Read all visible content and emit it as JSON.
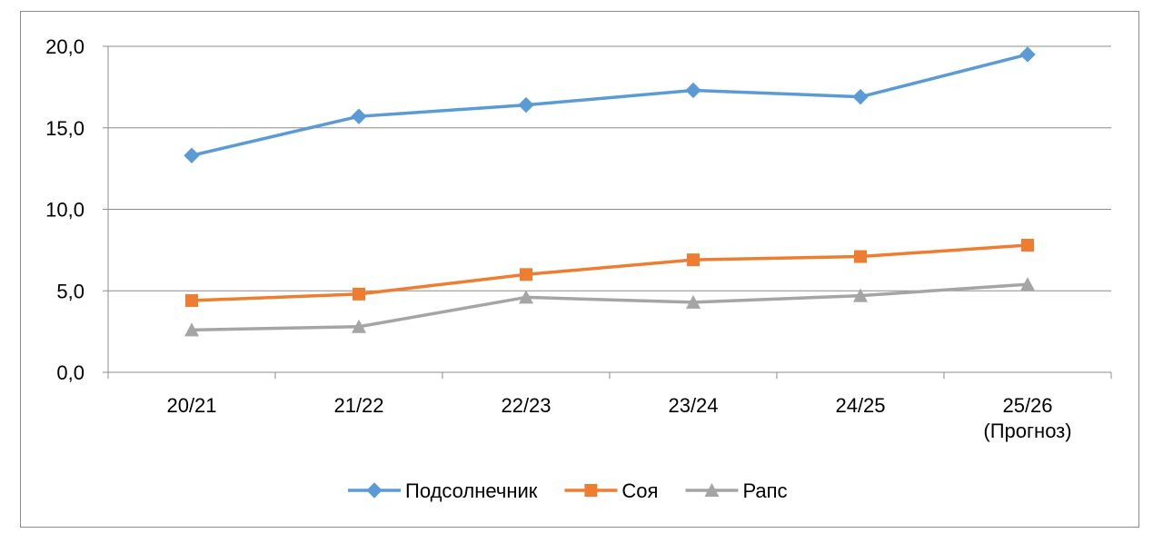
{
  "chart_data": {
    "type": "line",
    "categories": [
      [
        "20/21"
      ],
      [
        "21/22"
      ],
      [
        "22/23"
      ],
      [
        "23/24"
      ],
      [
        "24/25"
      ],
      [
        "25/26",
        "(Прогноз)"
      ]
    ],
    "yticks": [
      "0,0",
      "5,0",
      "10,0",
      "15,0",
      "20,0"
    ],
    "ylim": [
      0,
      20
    ],
    "grid": true,
    "legend_position": "bottom",
    "series": [
      {
        "name": "Подсолнечник",
        "color": "#5b9bd5",
        "marker": "diamond",
        "values": [
          13.3,
          15.7,
          16.4,
          17.3,
          16.9,
          19.5
        ]
      },
      {
        "name": "Соя",
        "color": "#ed7d31",
        "marker": "square",
        "values": [
          4.4,
          4.8,
          6.0,
          6.9,
          7.1,
          7.8
        ]
      },
      {
        "name": "Рапс",
        "color": "#a5a5a5",
        "marker": "triangle",
        "values": [
          2.6,
          2.8,
          4.6,
          4.3,
          4.7,
          5.4
        ]
      }
    ]
  }
}
